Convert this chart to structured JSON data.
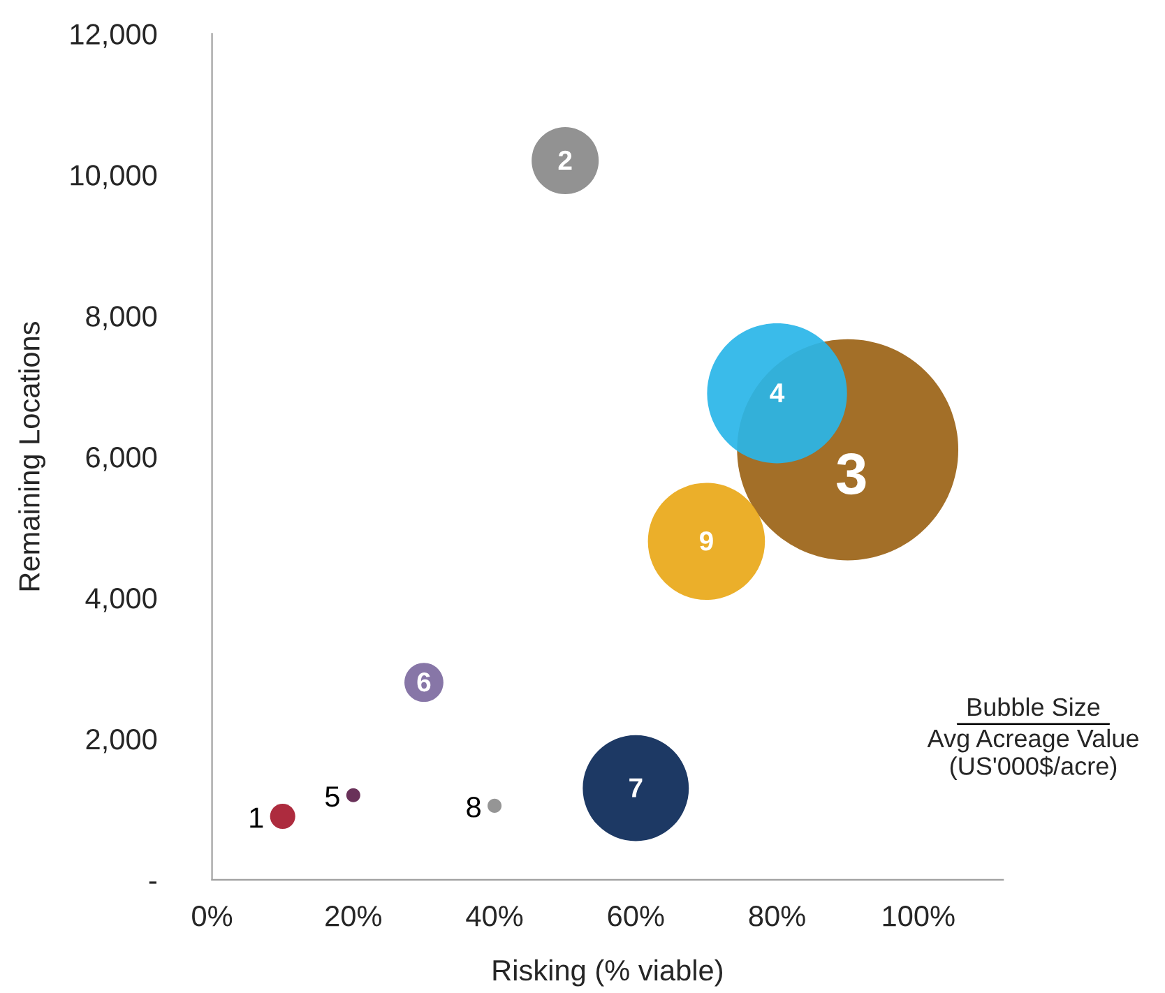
{
  "chart_data": {
    "type": "bubble",
    "xlabel": "Risking (% viable)",
    "ylabel": "Remaining Locations",
    "series": [
      {
        "name": "1",
        "color": "#a6192e",
        "x": [
          10
        ],
        "values": [
          900
        ],
        "sizes": [
          0.013
        ]
      },
      {
        "name": "2",
        "color": "#898989",
        "x": [
          50
        ],
        "values": [
          10200
        ],
        "sizes": [
          0.092
        ]
      },
      {
        "name": "3",
        "color": "#9b6316",
        "x": [
          90
        ],
        "values": [
          6100
        ],
        "sizes": [
          1
        ]
      },
      {
        "name": "4",
        "color": "#29b5e8",
        "x": [
          80
        ],
        "values": [
          6900
        ],
        "sizes": [
          0.4
        ]
      },
      {
        "name": "5",
        "color": "#5c1f4b",
        "x": [
          20
        ],
        "values": [
          1200
        ],
        "sizes": [
          0.004
        ]
      },
      {
        "name": "6",
        "color": "#7d6aa0",
        "x": [
          30
        ],
        "values": [
          2800
        ],
        "sizes": [
          0.031
        ]
      },
      {
        "name": "7",
        "color": "#0a2857",
        "x": [
          60
        ],
        "values": [
          1300
        ],
        "sizes": [
          0.23
        ]
      },
      {
        "name": "8",
        "color": "#8c8c8c",
        "x": [
          40
        ],
        "values": [
          1050
        ],
        "sizes": [
          0.004
        ]
      },
      {
        "name": "9",
        "color": "#e9a818",
        "x": [
          70
        ],
        "values": [
          4800
        ],
        "sizes": [
          0.28
        ]
      }
    ],
    "xlim": [
      0,
      112
    ],
    "xticks": [
      {
        "value": 0,
        "label": "0%"
      },
      {
        "value": 20,
        "label": "20%"
      },
      {
        "value": 40,
        "label": "40%"
      },
      {
        "value": 60,
        "label": "60%"
      },
      {
        "value": 80,
        "label": "80%"
      },
      {
        "value": 100,
        "label": "100%"
      }
    ],
    "ylim": [
      0,
      12000
    ],
    "yticks": [
      {
        "value": 0,
        "label": "-"
      },
      {
        "value": 2000,
        "label": "2,000"
      },
      {
        "value": 4000,
        "label": "4,000"
      },
      {
        "value": 6000,
        "label": "6,000"
      },
      {
        "value": 8000,
        "label": "8,000"
      },
      {
        "value": 10000,
        "label": "10,000"
      },
      {
        "value": 12000,
        "label": "12,000"
      }
    ],
    "grid": false,
    "legend": false,
    "annotations": [
      "Bubble Size",
      "Avg Acreage Value\n(US'000$/acre)"
    ]
  }
}
